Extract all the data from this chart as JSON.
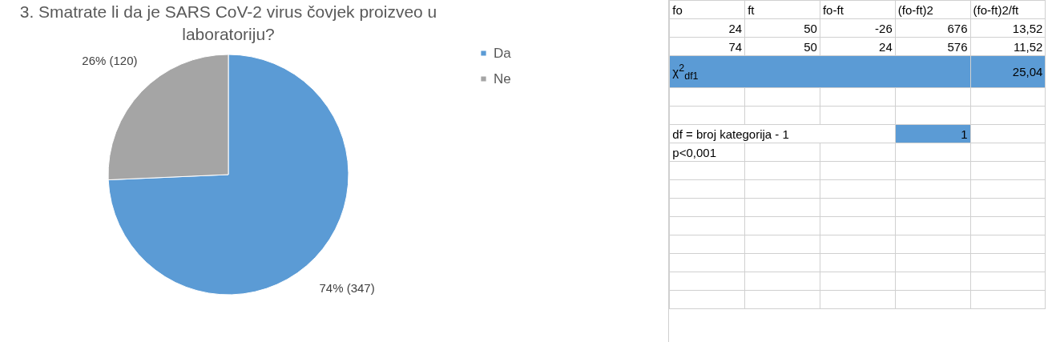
{
  "chart_data": [
    {
      "type": "pie",
      "title": "3. Smatrate li da je SARS CoV-2 virus čovjek proizveo u laboratoriju?",
      "categories": [
        "Da",
        "Ne"
      ],
      "values": [
        347,
        120
      ],
      "colors": [
        "#5b9bd5",
        "#a5a5a5"
      ],
      "value_labels": [
        "74% (347)",
        "26% (120)"
      ],
      "legend": "right"
    },
    {
      "type": "other",
      "annotations": [
        "fo",
        "ft",
        "fo-ft",
        "(fo-ft)2",
        "(fo-ft)2/ft",
        "24",
        "50",
        "-26",
        "676",
        "13,52",
        "74",
        "50",
        "24",
        "576",
        "11,52",
        "χ$^{2}$$_{df1}$",
        "25,04",
        "df = broj kategorija - 1",
        "1",
        "p<0,001"
      ]
    }
  ]
}
